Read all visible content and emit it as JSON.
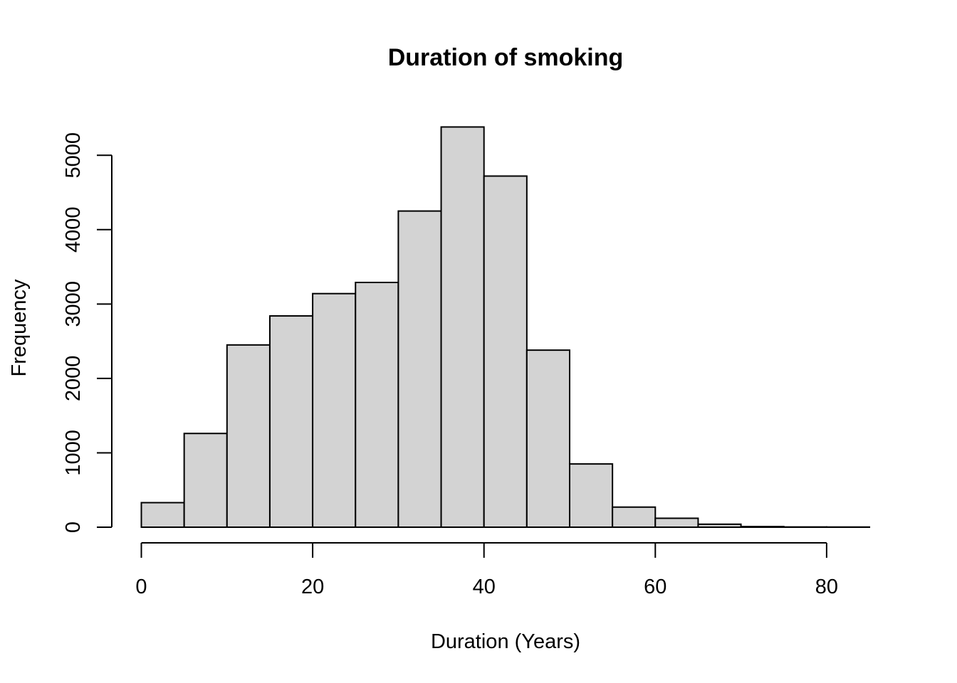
{
  "chart_data": {
    "type": "bar",
    "title": "Duration of smoking",
    "xlabel": "Duration (Years)",
    "ylabel": "Frequency",
    "bin_edges": [
      0,
      5,
      10,
      15,
      20,
      25,
      30,
      35,
      40,
      45,
      50,
      55,
      60,
      65,
      70,
      75,
      80,
      85
    ],
    "values": [
      330,
      1260,
      2450,
      2840,
      3140,
      3290,
      4250,
      5380,
      4720,
      2380,
      850,
      270,
      120,
      40,
      8,
      3,
      2
    ],
    "xlim": [
      0,
      85
    ],
    "ylim": [
      0,
      5400
    ],
    "x_ticks": [
      0,
      20,
      40,
      60,
      80
    ],
    "x_tick_labels": [
      "0",
      "20",
      "40",
      "60",
      "80"
    ],
    "y_ticks": [
      0,
      1000,
      2000,
      3000,
      4000,
      5000
    ],
    "y_tick_labels": [
      "0",
      "1000",
      "2000",
      "3000",
      "4000",
      "5000"
    ],
    "bar_fill": "#d3d3d3",
    "bar_stroke": "#000000",
    "grid": false,
    "legend": "none"
  }
}
